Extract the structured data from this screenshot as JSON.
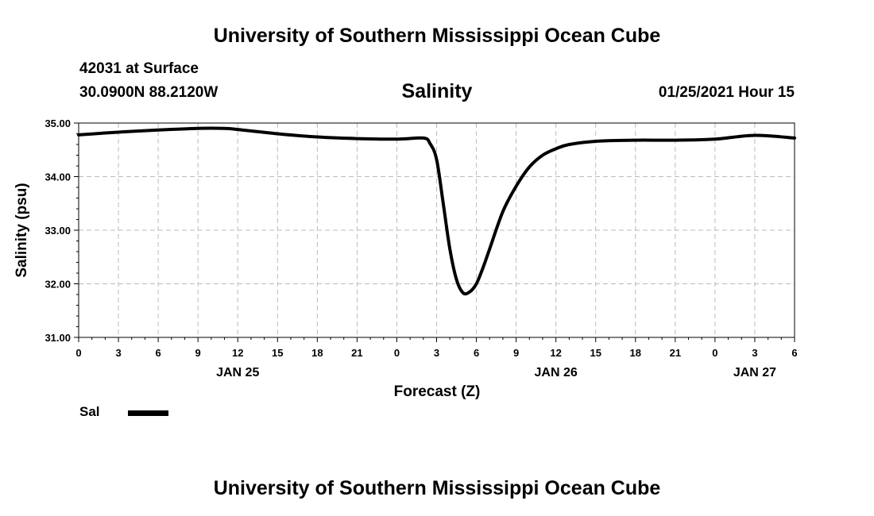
{
  "page": {
    "header_title": "University of Southern Mississippi Ocean Cube",
    "footer_title": "University of Southern Mississippi Ocean Cube",
    "station": "42031 at Surface",
    "coordinates": "30.0900N 88.2120W",
    "datetime": "01/25/2021 Hour 15"
  },
  "legend": {
    "label": "Sal",
    "color": "#000000"
  },
  "chart_data": {
    "type": "line",
    "title": "Salinity",
    "xlabel": "Forecast (Z)",
    "ylabel": "Salinity (psu)",
    "xlim": [
      0,
      54
    ],
    "ylim": [
      31,
      35
    ],
    "grid": true,
    "x_ticks": [
      0,
      3,
      6,
      9,
      12,
      15,
      18,
      21,
      24,
      27,
      30,
      33,
      36,
      39,
      42,
      45,
      48,
      51,
      54
    ],
    "x_tick_labels": [
      "0",
      "3",
      "6",
      "9",
      "12",
      "15",
      "18",
      "21",
      "0",
      "3",
      "6",
      "9",
      "12",
      "15",
      "18",
      "21",
      "0",
      "3",
      "6"
    ],
    "y_ticks": [
      31,
      32,
      33,
      34,
      35
    ],
    "y_tick_labels": [
      "31.00",
      "32.00",
      "33.00",
      "34.00",
      "35.00"
    ],
    "date_labels": [
      {
        "x": 12,
        "label": "JAN 25"
      },
      {
        "x": 36,
        "label": "JAN 26"
      },
      {
        "x": 51,
        "label": "JAN 27"
      }
    ],
    "series": [
      {
        "name": "Sal",
        "color": "#000000",
        "x": [
          0,
          3,
          6,
          9,
          11,
          12,
          15,
          18,
          21,
          24,
          26,
          26.5,
          27,
          27.5,
          28,
          28.5,
          29,
          29.5,
          30,
          30.5,
          31,
          32,
          33,
          34,
          35,
          36,
          37,
          39,
          42,
          45,
          48,
          51,
          54
        ],
        "values": [
          34.78,
          34.83,
          34.87,
          34.9,
          34.9,
          34.88,
          34.8,
          34.74,
          34.71,
          34.7,
          34.72,
          34.62,
          34.32,
          33.5,
          32.65,
          32.08,
          31.83,
          31.85,
          32.0,
          32.3,
          32.65,
          33.35,
          33.82,
          34.18,
          34.4,
          34.52,
          34.6,
          34.66,
          34.68,
          34.68,
          34.7,
          34.77,
          34.72
        ]
      }
    ]
  }
}
